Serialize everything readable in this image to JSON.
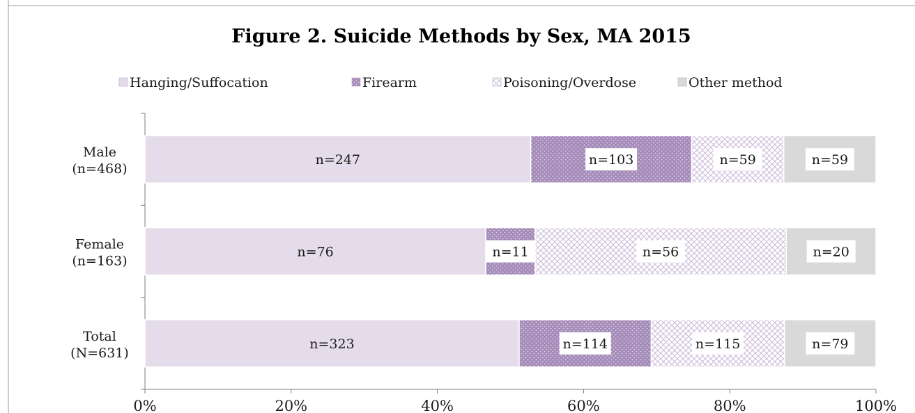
{
  "chart_data": {
    "type": "bar",
    "orientation": "horizontal",
    "stacked": "percent",
    "title": "Figure 2. Suicide Methods by Sex, MA 2015",
    "categories": [
      "Male\n(n=468)",
      "Female\n(n=163)",
      "Total\n(N=631)"
    ],
    "series": [
      {
        "name": "Hanging/Suffocation",
        "values": [
          247,
          76,
          323
        ],
        "labels": [
          "n=247",
          "n=76",
          "n=323"
        ],
        "color": "#e4dcea",
        "pattern": "solid"
      },
      {
        "name": "Firearm",
        "values": [
          103,
          11,
          114
        ],
        "labels": [
          "n=103",
          "n=11",
          "n=114"
        ],
        "color": "#a48ab8",
        "pattern": "dots"
      },
      {
        "name": "Poisoning/Overdose",
        "values": [
          59,
          56,
          115
        ],
        "labels": [
          "n=59",
          "n=56",
          "n=115"
        ],
        "color": "#e2d8ea",
        "pattern": "cross"
      },
      {
        "name": "Other method",
        "values": [
          59,
          20,
          79
        ],
        "labels": [
          "n=59",
          "n=20",
          "n=79"
        ],
        "color": "#d9d9d9",
        "pattern": "solid"
      }
    ],
    "xlim": [
      0,
      100
    ],
    "xticks": [
      "0%",
      "20%",
      "40%",
      "60%",
      "80%",
      "100%"
    ],
    "legend_position": "top",
    "grid": false
  }
}
